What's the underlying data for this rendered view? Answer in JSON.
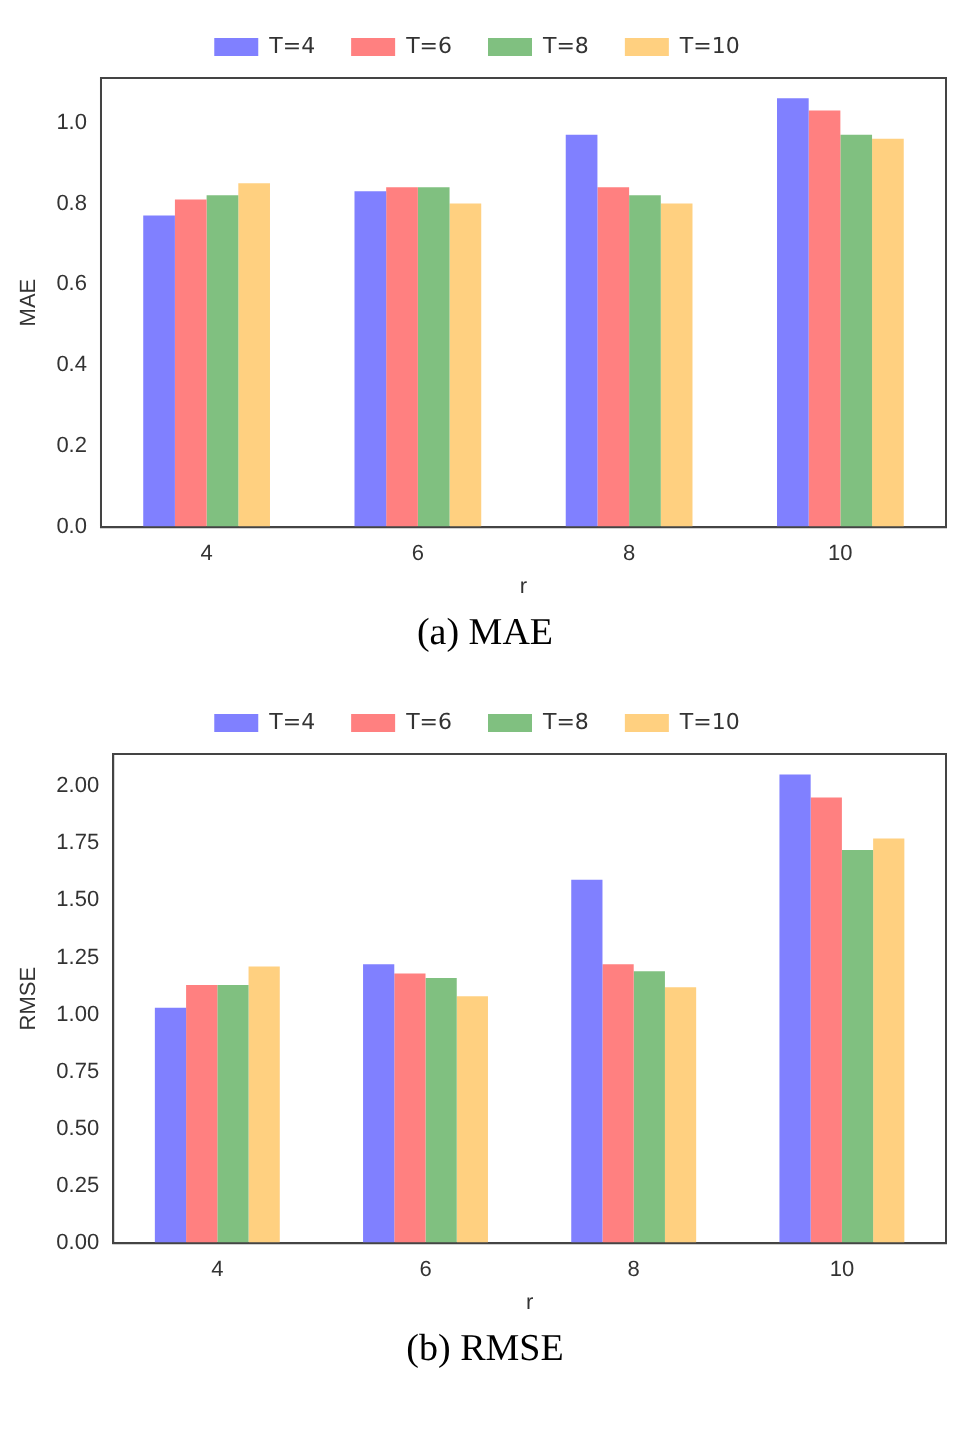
{
  "chart_data": [
    {
      "type": "bar",
      "xlabel": "r",
      "ylabel": "MAE",
      "categories": [
        "4",
        "6",
        "8",
        "10"
      ],
      "ylim": [
        0,
        1.11
      ],
      "yticks": [
        {
          "value": 0,
          "label": "0.0"
        },
        {
          "value": 0.2,
          "label": "0.2"
        },
        {
          "value": 0.4,
          "label": "0.4"
        },
        {
          "value": 0.6,
          "label": "0.6"
        },
        {
          "value": 0.8,
          "label": "0.8"
        },
        {
          "value": 1,
          "label": "1.0"
        }
      ],
      "grid": false,
      "legend": "top",
      "annotations": [
        "(a)   MAE"
      ],
      "series": [
        {
          "name": "T=4",
          "color": "#8080ff",
          "values": [
            0.77,
            0.83,
            0.97,
            1.06
          ]
        },
        {
          "name": "T=6",
          "color": "#ff8080",
          "values": [
            0.81,
            0.84,
            0.84,
            1.03
          ]
        },
        {
          "name": "T=8",
          "color": "#80c080",
          "values": [
            0.82,
            0.84,
            0.82,
            0.97
          ]
        },
        {
          "name": "T=10",
          "color": "#ffd080",
          "values": [
            0.85,
            0.8,
            0.8,
            0.96
          ]
        }
      ]
    },
    {
      "type": "bar",
      "xlabel": "r",
      "ylabel": "RMSE",
      "categories": [
        "4",
        "6",
        "8",
        "10"
      ],
      "ylim": [
        0,
        2.14
      ],
      "yticks": [
        {
          "value": 0,
          "label": "0.00"
        },
        {
          "value": 0.25,
          "label": "0.25"
        },
        {
          "value": 0.5,
          "label": "0.50"
        },
        {
          "value": 0.75,
          "label": "0.75"
        },
        {
          "value": 1,
          "label": "1.00"
        },
        {
          "value": 1.25,
          "label": "1.25"
        },
        {
          "value": 1.5,
          "label": "1.50"
        },
        {
          "value": 1.75,
          "label": "1.75"
        },
        {
          "value": 2,
          "label": "2.00"
        }
      ],
      "grid": false,
      "legend": "top",
      "annotations": [
        "(b)   RMSE"
      ],
      "series": [
        {
          "name": "T=4",
          "color": "#8080ff",
          "values": [
            1.03,
            1.22,
            1.59,
            2.05
          ]
        },
        {
          "name": "T=6",
          "color": "#ff8080",
          "values": [
            1.13,
            1.18,
            1.22,
            1.95
          ]
        },
        {
          "name": "T=8",
          "color": "#80c080",
          "values": [
            1.13,
            1.16,
            1.19,
            1.72
          ]
        },
        {
          "name": "T=10",
          "color": "#ffd080",
          "values": [
            1.21,
            1.08,
            1.12,
            1.77
          ]
        }
      ]
    }
  ]
}
